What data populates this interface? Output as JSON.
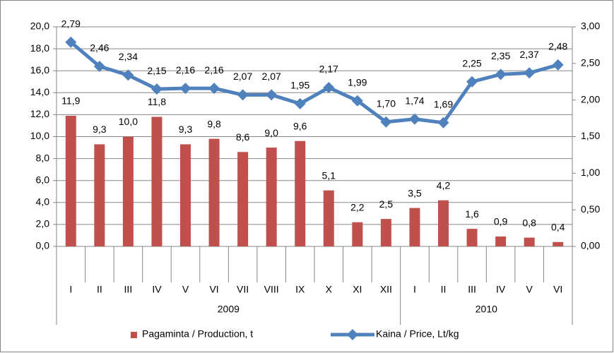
{
  "chart_data": {
    "type": "bar",
    "category_groups": [
      {
        "label": "2009",
        "categories": [
          "I",
          "II",
          "III",
          "IV",
          "V",
          "VI",
          "VII",
          "VIII",
          "IX",
          "X",
          "XI",
          "XII"
        ]
      },
      {
        "label": "2010",
        "categories": [
          "I",
          "II",
          "III",
          "IV",
          "V",
          "VI"
        ]
      }
    ],
    "series": [
      {
        "name": "Pagaminta / Production, t",
        "type": "bar",
        "color": "#c0504d",
        "values": [
          11.9,
          9.3,
          10.0,
          11.8,
          9.3,
          9.8,
          8.6,
          9.0,
          9.6,
          5.1,
          2.2,
          2.5,
          3.5,
          4.2,
          1.6,
          0.9,
          0.8,
          0.4
        ],
        "value_labels": [
          "11,9",
          "9,3",
          "10,0",
          "11,8",
          "9,3",
          "9,8",
          "8,6",
          "9,0",
          "9,6",
          "5,1",
          "2,2",
          "2,5",
          "3,5",
          "4,2",
          "1,6",
          "0,9",
          "0,8",
          "0,4"
        ]
      },
      {
        "name": "Kaina / Price, Lt/kg",
        "type": "line",
        "axis": "y2",
        "color": "#4f81bd",
        "values": [
          2.79,
          2.46,
          2.34,
          2.15,
          2.16,
          2.16,
          2.07,
          2.07,
          1.95,
          2.17,
          1.99,
          1.7,
          1.74,
          1.69,
          2.25,
          2.35,
          2.37,
          2.48
        ],
        "value_labels": [
          "2,79",
          "2,46",
          "2,34",
          "2,15",
          "2,16",
          "2,16",
          "2,07",
          "2,07",
          "1,95",
          "2,17",
          "1,99",
          "1,70",
          "1,74",
          "1,69",
          "2,25",
          "2,35",
          "2,37",
          "2,48"
        ]
      }
    ],
    "ylim": [
      0,
      20
    ],
    "yticks": [
      {
        "value": 0,
        "label": "0,0"
      },
      {
        "value": 2,
        "label": "2,0"
      },
      {
        "value": 4,
        "label": "4,0"
      },
      {
        "value": 6,
        "label": "6,0"
      },
      {
        "value": 8,
        "label": "8,0"
      },
      {
        "value": 10,
        "label": "10,0"
      },
      {
        "value": 12,
        "label": "12,0"
      },
      {
        "value": 14,
        "label": "14,0"
      },
      {
        "value": 16,
        "label": "16,0"
      },
      {
        "value": 18,
        "label": "18,0"
      },
      {
        "value": 20,
        "label": "20,0"
      }
    ],
    "y2lim": [
      0,
      3
    ],
    "y2ticks": [
      {
        "value": 0,
        "label": "0,00"
      },
      {
        "value": 0.5,
        "label": "0,50"
      },
      {
        "value": 1,
        "label": "1,00"
      },
      {
        "value": 1.5,
        "label": "1,50"
      },
      {
        "value": 2,
        "label": "2,00"
      },
      {
        "value": 2.5,
        "label": "2,50"
      },
      {
        "value": 3,
        "label": "3,00"
      }
    ],
    "grid": true,
    "legend": "bottom"
  }
}
